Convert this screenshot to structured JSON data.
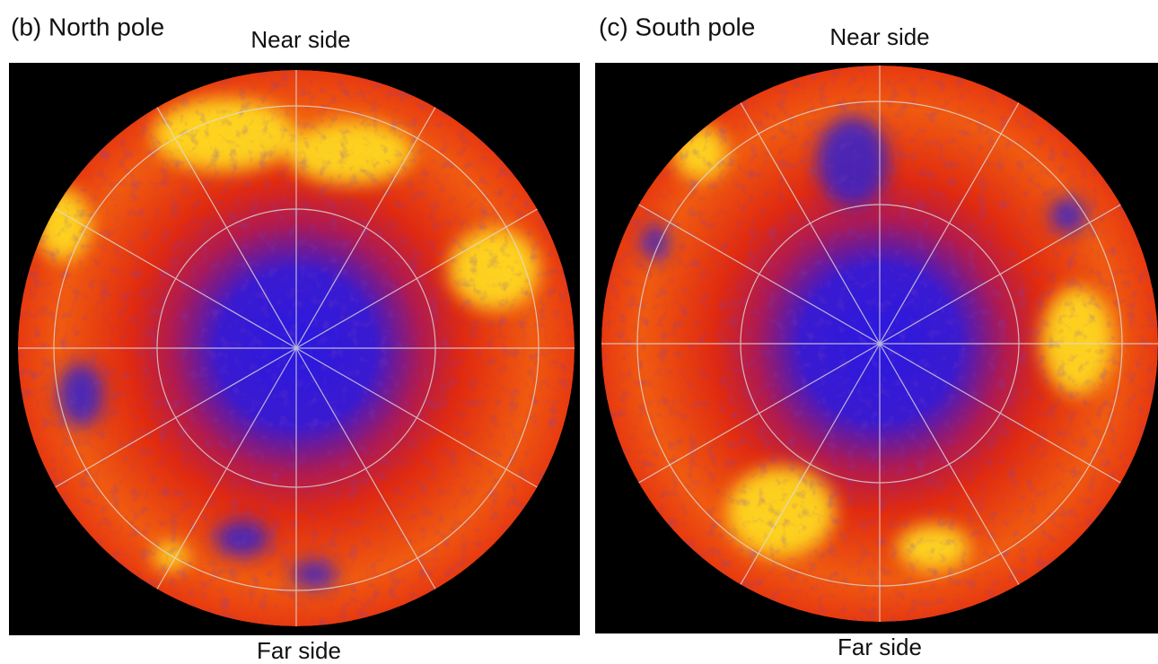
{
  "panels": [
    {
      "label": "(b) North pole",
      "top": "Near side",
      "bottom": "Far side"
    },
    {
      "label": "(c) South pole",
      "top": "Near side",
      "bottom": "Far side"
    }
  ]
}
